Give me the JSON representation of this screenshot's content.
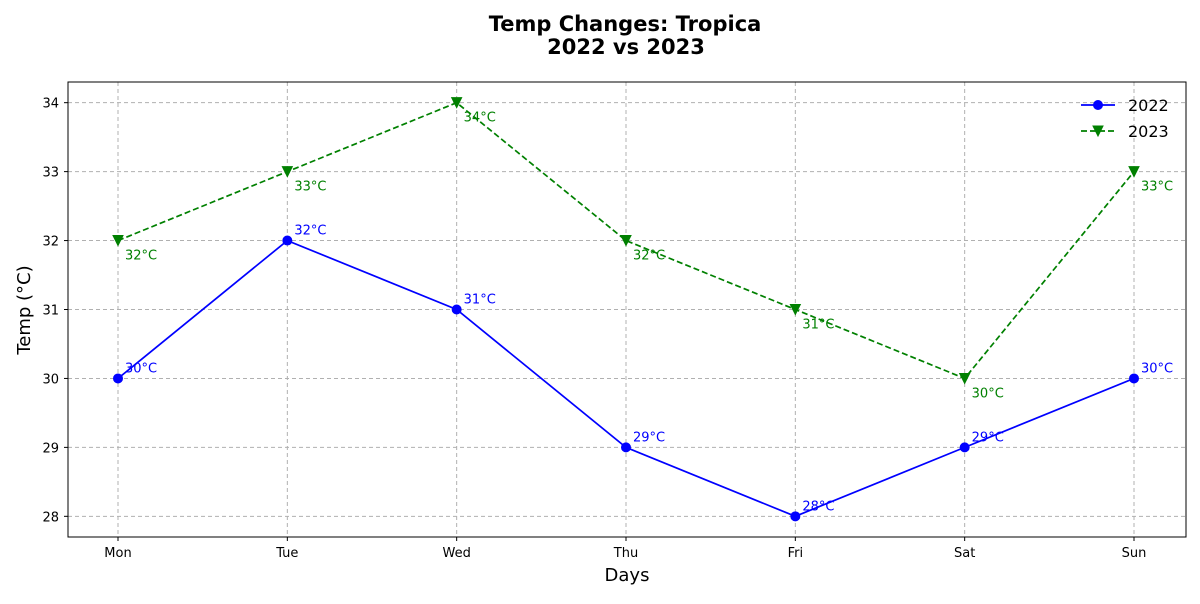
{
  "chart_data": {
    "type": "line",
    "title_line1": "Temp Changes: Tropica",
    "title_line2": "2022 vs 2023",
    "xlabel": "Days",
    "ylabel": "Temp (°C)",
    "categories": [
      "Mon",
      "Tue",
      "Wed",
      "Thu",
      "Fri",
      "Sat",
      "Sun"
    ],
    "yticks": [
      28,
      29,
      30,
      31,
      32,
      33,
      34
    ],
    "ylim": [
      27.7,
      34.3
    ],
    "grid": true,
    "legend_position": "top-right",
    "series": [
      {
        "name": "2022",
        "values": [
          30,
          32,
          31,
          29,
          28,
          29,
          30
        ],
        "labels": [
          "30°C",
          "32°C",
          "31°C",
          "29°C",
          "28°C",
          "29°C",
          "30°C"
        ],
        "color": "#0000ff",
        "line_style": "solid",
        "marker": "circle",
        "label_position": "above-right"
      },
      {
        "name": "2023",
        "values": [
          32,
          33,
          34,
          32,
          31,
          30,
          33
        ],
        "labels": [
          "32°C",
          "33°C",
          "34°C",
          "32°C",
          "31°C",
          "30°C",
          "33°C"
        ],
        "color": "#008000",
        "line_style": "dashed",
        "marker": "triangle-down",
        "label_position": "below-right"
      }
    ]
  }
}
